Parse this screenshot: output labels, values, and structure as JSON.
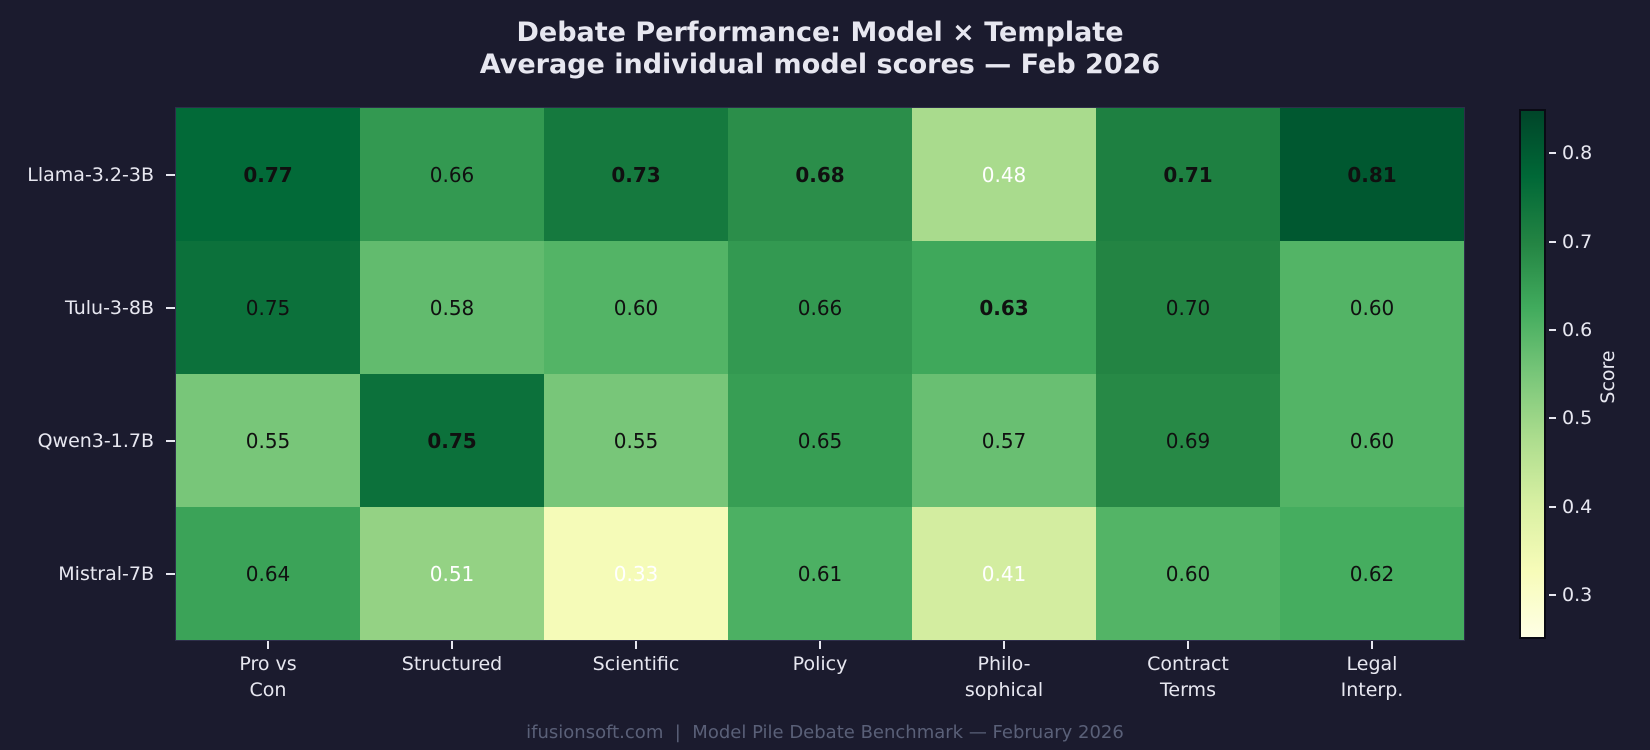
{
  "title": {
    "line1": "Debate Performance: Model × Template",
    "line2": "Average individual model scores — Feb 2026"
  },
  "footer": "ifusionsoft.com  |  Model Pile Debate Benchmark — February 2026",
  "colors": {
    "background": "#1b1b2e",
    "label_text": "#e7e7f0",
    "footer_text": "#5a6078",
    "cell_text_dark": "#101010",
    "cell_text_light": "#ffffff",
    "colormap_name": "YlGn",
    "colormap_stops": [
      "#ffffe5",
      "#f7fcb9",
      "#d9f0a3",
      "#addd8e",
      "#78c679",
      "#41ab5d",
      "#238443",
      "#006837",
      "#004529"
    ]
  },
  "chart_data": {
    "type": "heatmap",
    "title": "Debate Performance: Model × Template",
    "subtitle": "Average individual model scores — Feb 2026",
    "rows": [
      "Llama-3.2-3B",
      "Tulu-3-8B",
      "Qwen3-1.7B",
      "Mistral-7B"
    ],
    "columns": [
      "Pro vs\nCon",
      "Structured",
      "Scientific",
      "Policy",
      "Philo-\nsophical",
      "Contract\nTerms",
      "Legal\nInterp."
    ],
    "values": [
      [
        0.77,
        0.66,
        0.73,
        0.68,
        0.48,
        0.71,
        0.81
      ],
      [
        0.75,
        0.58,
        0.6,
        0.66,
        0.63,
        0.7,
        0.6
      ],
      [
        0.55,
        0.75,
        0.55,
        0.65,
        0.57,
        0.69,
        0.6
      ],
      [
        0.64,
        0.51,
        0.33,
        0.61,
        0.41,
        0.6,
        0.62
      ]
    ],
    "value_format": "2-decimals",
    "bold_rule": "column-maximum values are bold",
    "vmin": 0.25,
    "vmax": 0.85,
    "colorbar": {
      "label": "Score",
      "ticks": [
        0.3,
        0.4,
        0.5,
        0.6,
        0.7,
        0.8
      ]
    },
    "legend_position": "right-colorbar",
    "grid": false
  }
}
